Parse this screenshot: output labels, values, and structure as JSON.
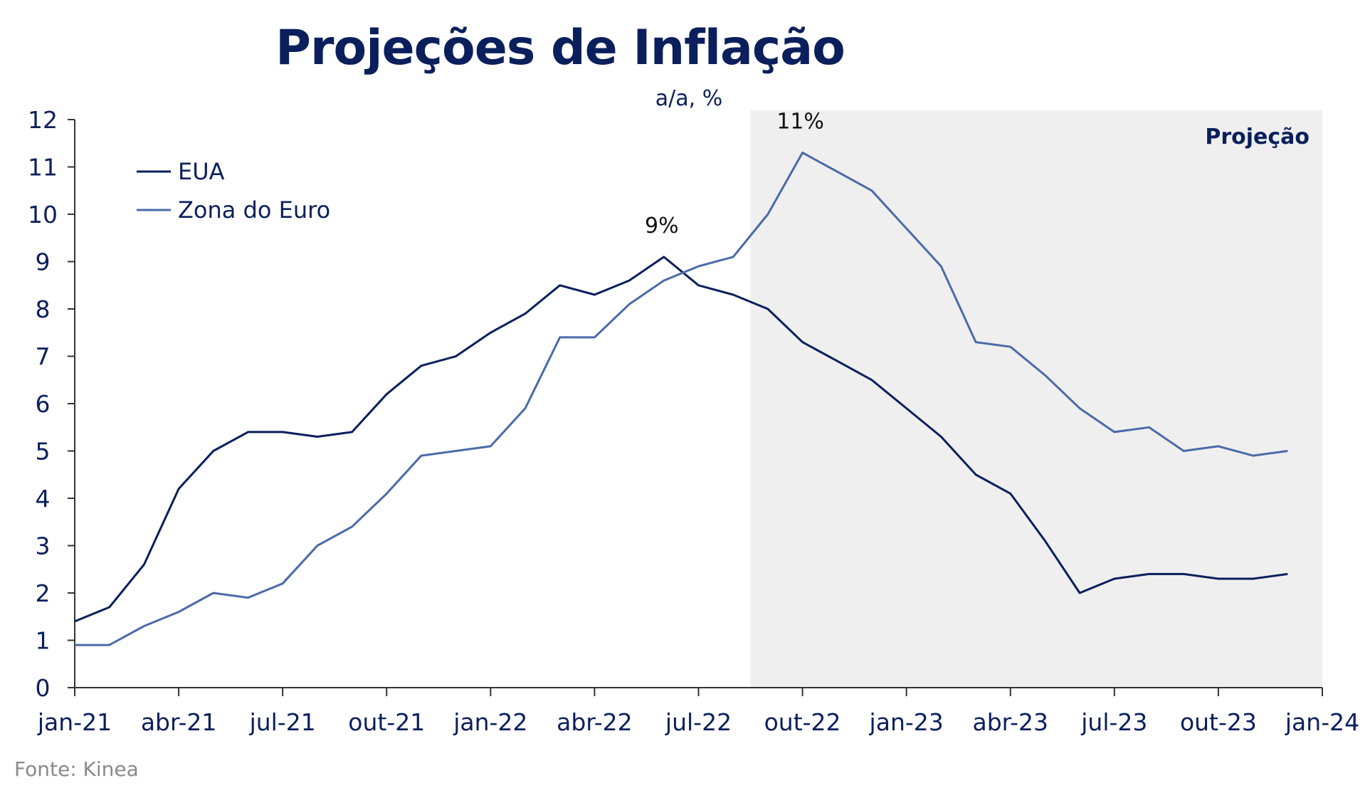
{
  "chart_data": {
    "type": "line",
    "title": "Projeções de Inflação",
    "subtitle": "a/a, %",
    "ylim": [
      0,
      12
    ],
    "yticks": [
      "0",
      "1",
      "2",
      "3",
      "4",
      "5",
      "6",
      "7",
      "8",
      "9",
      "10",
      "11",
      "12"
    ],
    "x_range": [
      "2021-01",
      "2024-01"
    ],
    "xticks": [
      {
        "label": "jan-21",
        "date": "2021-01"
      },
      {
        "label": "abr-21",
        "date": "2021-04"
      },
      {
        "label": "jul-21",
        "date": "2021-07"
      },
      {
        "label": "out-21",
        "date": "2021-10"
      },
      {
        "label": "jan-22",
        "date": "2022-01"
      },
      {
        "label": "abr-22",
        "date": "2022-04"
      },
      {
        "label": "jul-22",
        "date": "2022-07"
      },
      {
        "label": "out-22",
        "date": "2022-10"
      },
      {
        "label": "jan-23",
        "date": "2023-01"
      },
      {
        "label": "abr-23",
        "date": "2023-04"
      },
      {
        "label": "jul-23",
        "date": "2023-07"
      },
      {
        "label": "out-23",
        "date": "2023-10"
      },
      {
        "label": "jan-24",
        "date": "2024-01"
      }
    ],
    "x": [
      "2021-01",
      "2021-02",
      "2021-03",
      "2021-04",
      "2021-05",
      "2021-06",
      "2021-07",
      "2021-08",
      "2021-09",
      "2021-10",
      "2021-11",
      "2021-12",
      "2022-01",
      "2022-02",
      "2022-03",
      "2022-04",
      "2022-05",
      "2022-06",
      "2022-07",
      "2022-08",
      "2022-09",
      "2022-10",
      "2022-11",
      "2022-12",
      "2023-01",
      "2023-02",
      "2023-03",
      "2023-04",
      "2023-05",
      "2023-06",
      "2023-07",
      "2023-08",
      "2023-09",
      "2023-10",
      "2023-11",
      "2023-12"
    ],
    "series": [
      {
        "name": "EUA",
        "color": "#0a1f5c",
        "values": [
          1.4,
          1.7,
          2.6,
          4.2,
          5.0,
          5.4,
          5.4,
          5.3,
          5.4,
          6.2,
          6.8,
          7.0,
          7.5,
          7.9,
          8.5,
          8.3,
          8.6,
          9.1,
          8.5,
          8.3,
          8.0,
          7.3,
          6.9,
          6.5,
          5.9,
          5.3,
          4.5,
          4.1,
          3.1,
          2.0,
          2.3,
          2.4,
          2.4,
          2.3,
          2.3,
          2.4
        ]
      },
      {
        "name": "Zona do Euro",
        "color": "#4a6aa8",
        "values": [
          0.9,
          0.9,
          1.3,
          1.6,
          2.0,
          1.9,
          2.2,
          3.0,
          3.4,
          4.1,
          4.9,
          5.0,
          5.1,
          5.9,
          7.4,
          7.4,
          8.1,
          8.6,
          8.9,
          9.1,
          10.0,
          11.3,
          10.9,
          10.5,
          9.7,
          8.9,
          7.3,
          7.2,
          6.6,
          5.9,
          5.4,
          5.5,
          5.0,
          5.1,
          4.9,
          5.0
        ]
      }
    ],
    "annotations": [
      {
        "text": "9%",
        "series": "EUA",
        "date": "2022-06",
        "value": 9.1
      },
      {
        "text": "11%",
        "series": "Zona do Euro",
        "date": "2022-10",
        "value": 11.3
      }
    ],
    "projection": {
      "label": "Projeção",
      "start": "2022-08.5",
      "end": "2024-01"
    },
    "legend": "top-left",
    "grid": false
  },
  "source": "Fonte: Kinea"
}
